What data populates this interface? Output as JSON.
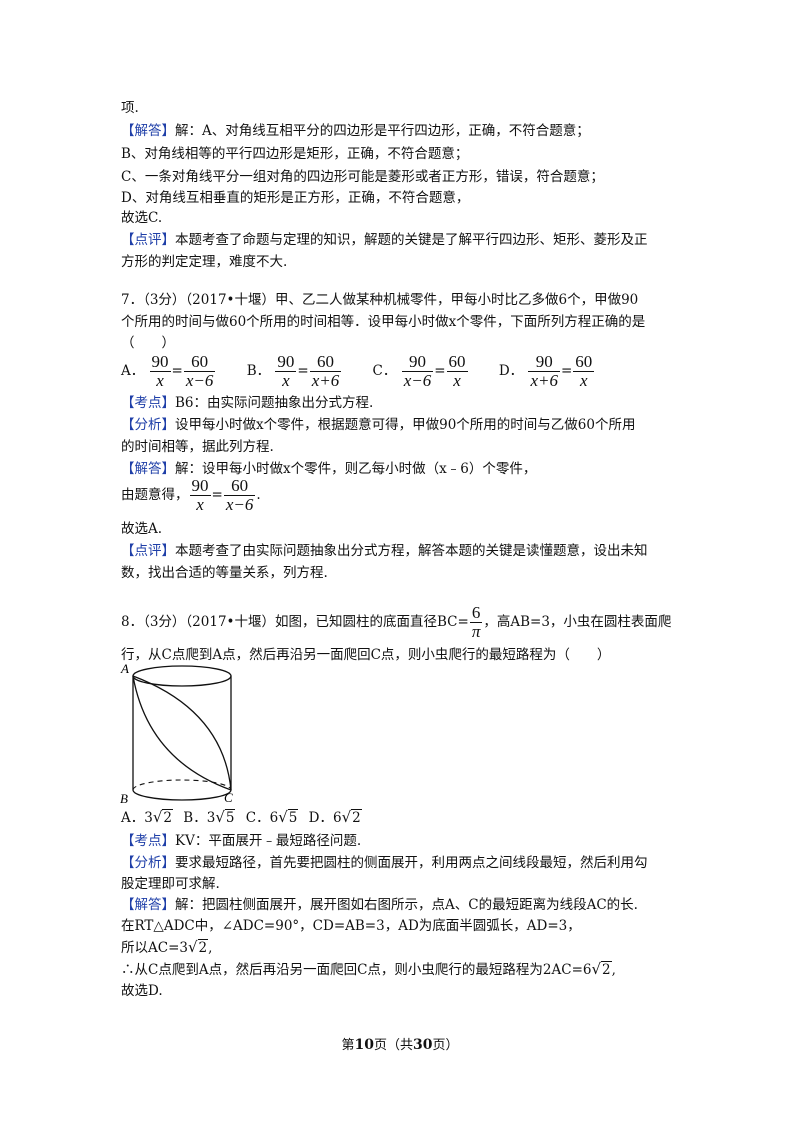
{
  "q6_tail": {
    "l0": "项.",
    "l1_tag": "【解答】",
    "l1": "解：A、对角线互相平分的四边形是平行四边形，正确，不符合题意；",
    "l2": "B、对角线相等的平行四边形是矩形，正确，不符合题意；",
    "l3": "C、一条对角线平分一组对角的四边形可能是菱形或者正方形，错误，符合题意；",
    "l4": "D、对角线互相垂直的矩形是正方形，正确，不符合题意，",
    "l5": "故选C.",
    "l6_tag": "【点评】",
    "l6": "本题考查了命题与定理的知识，解题的关键是了解平行四边形、矩形、菱形及正",
    "l7": "方形的判定定理，难度不大."
  },
  "q7": {
    "stem1": "7．（3分）（2017•十堰）甲、乙二人做某种机械零件，甲每小时比乙多做6个，甲做90",
    "stem2": "个所用的时间与做60个所用的时间相等．设甲每小时做x个零件，下面所列方程正确的是",
    "stem3": "（　　）",
    "optA_label": "A．",
    "optA_n1": "90",
    "optA_d1": "x",
    "optA_eq": "=",
    "optA_n2": "60",
    "optA_d2": "x−6",
    "optB_label": "B．",
    "optB_n1": "90",
    "optB_d1": "x",
    "optB_eq": "=",
    "optB_n2": "60",
    "optB_d2": "x+6",
    "optC_label": "C．",
    "optC_n1": "90",
    "optC_d1": "x−6",
    "optC_eq": "=",
    "optC_n2": "60",
    "optC_d2": "x",
    "optD_label": "D．",
    "optD_n1": "90",
    "optD_d1": "x+6",
    "optD_eq": "=",
    "optD_n2": "60",
    "optD_d2": "x",
    "kd_tag": "【考点】",
    "kd": "B6：由实际问题抽象出分式方程.",
    "fx_tag": "【分析】",
    "fx1": "设甲每小时做x个零件，根据题意可得，甲做90个所用的时间与乙做60个所用",
    "fx2": "的时间相等，据此列方程.",
    "jd_tag": "【解答】",
    "jd1": "解：设甲每小时做x个零件，则乙每小时做（x﹣6）个零件，",
    "jd2_pre": "由题意得，",
    "jd2_n1": "90",
    "jd2_d1": "x",
    "jd2_eq": "=",
    "jd2_n2": "60",
    "jd2_d2": "x−6",
    "jd2_end": ".",
    "jd3": "故选A.",
    "dp_tag": "【点评】",
    "dp1": "本题考查了由实际问题抽象出分式方程，解答本题的关键是读懂题意，设出未知",
    "dp2": "数，找出合适的等量关系，列方程."
  },
  "q8": {
    "stem1_pre": "8．（3分）（2017•十堰）如图，已知圆柱的底面直径BC=",
    "stem1_num": "6",
    "stem1_den": "π",
    "stem1_post": "，高AB=3，小虫在圆柱表面爬",
    "stem2": "行，从C点爬到A点，然后再沿另一面爬回C点，则小虫爬行的最短路程为（　　）",
    "fig_A": "A",
    "fig_B": "B",
    "fig_C": "C",
    "optA_label": "A．",
    "optA_coef": "3",
    "optA_rad": "2",
    "optB_label": "B．",
    "optB_coef": "3",
    "optB_rad": "5",
    "optC_label": "C．",
    "optC_coef": "6",
    "optC_rad": "5",
    "optD_label": "D．",
    "optD_coef": "6",
    "optD_rad": "2",
    "kd_tag": "【考点】",
    "kd": "KV：平面展开﹣最短路径问题.",
    "fx_tag": "【分析】",
    "fx1": "要求最短路径，首先要把圆柱的侧面展开，利用两点之间线段最短，然后利用勾",
    "fx2": "股定理即可求解.",
    "jd_tag": "【解答】",
    "jd1": "解：把圆柱侧面展开，展开图如右图所示，点A、C的最短距离为线段AC的长.",
    "jd2": "在RT△ADC中，∠ADC=90°，CD=AB=3，AD为底面半圆弧长，AD=3，",
    "jd3_pre": "所以AC=3",
    "jd3_rad": "2",
    "jd3_end": ",",
    "jd4_pre": "∴从C点爬到A点，然后再沿另一面爬回C点，则小虫爬行的最短路程为2AC=6",
    "jd4_rad": "2",
    "jd4_end": ",",
    "jd5": "故选D."
  },
  "footer": {
    "pre": "第",
    "page": "10",
    "mid": "页（共",
    "total": "30",
    "post": "页）"
  }
}
